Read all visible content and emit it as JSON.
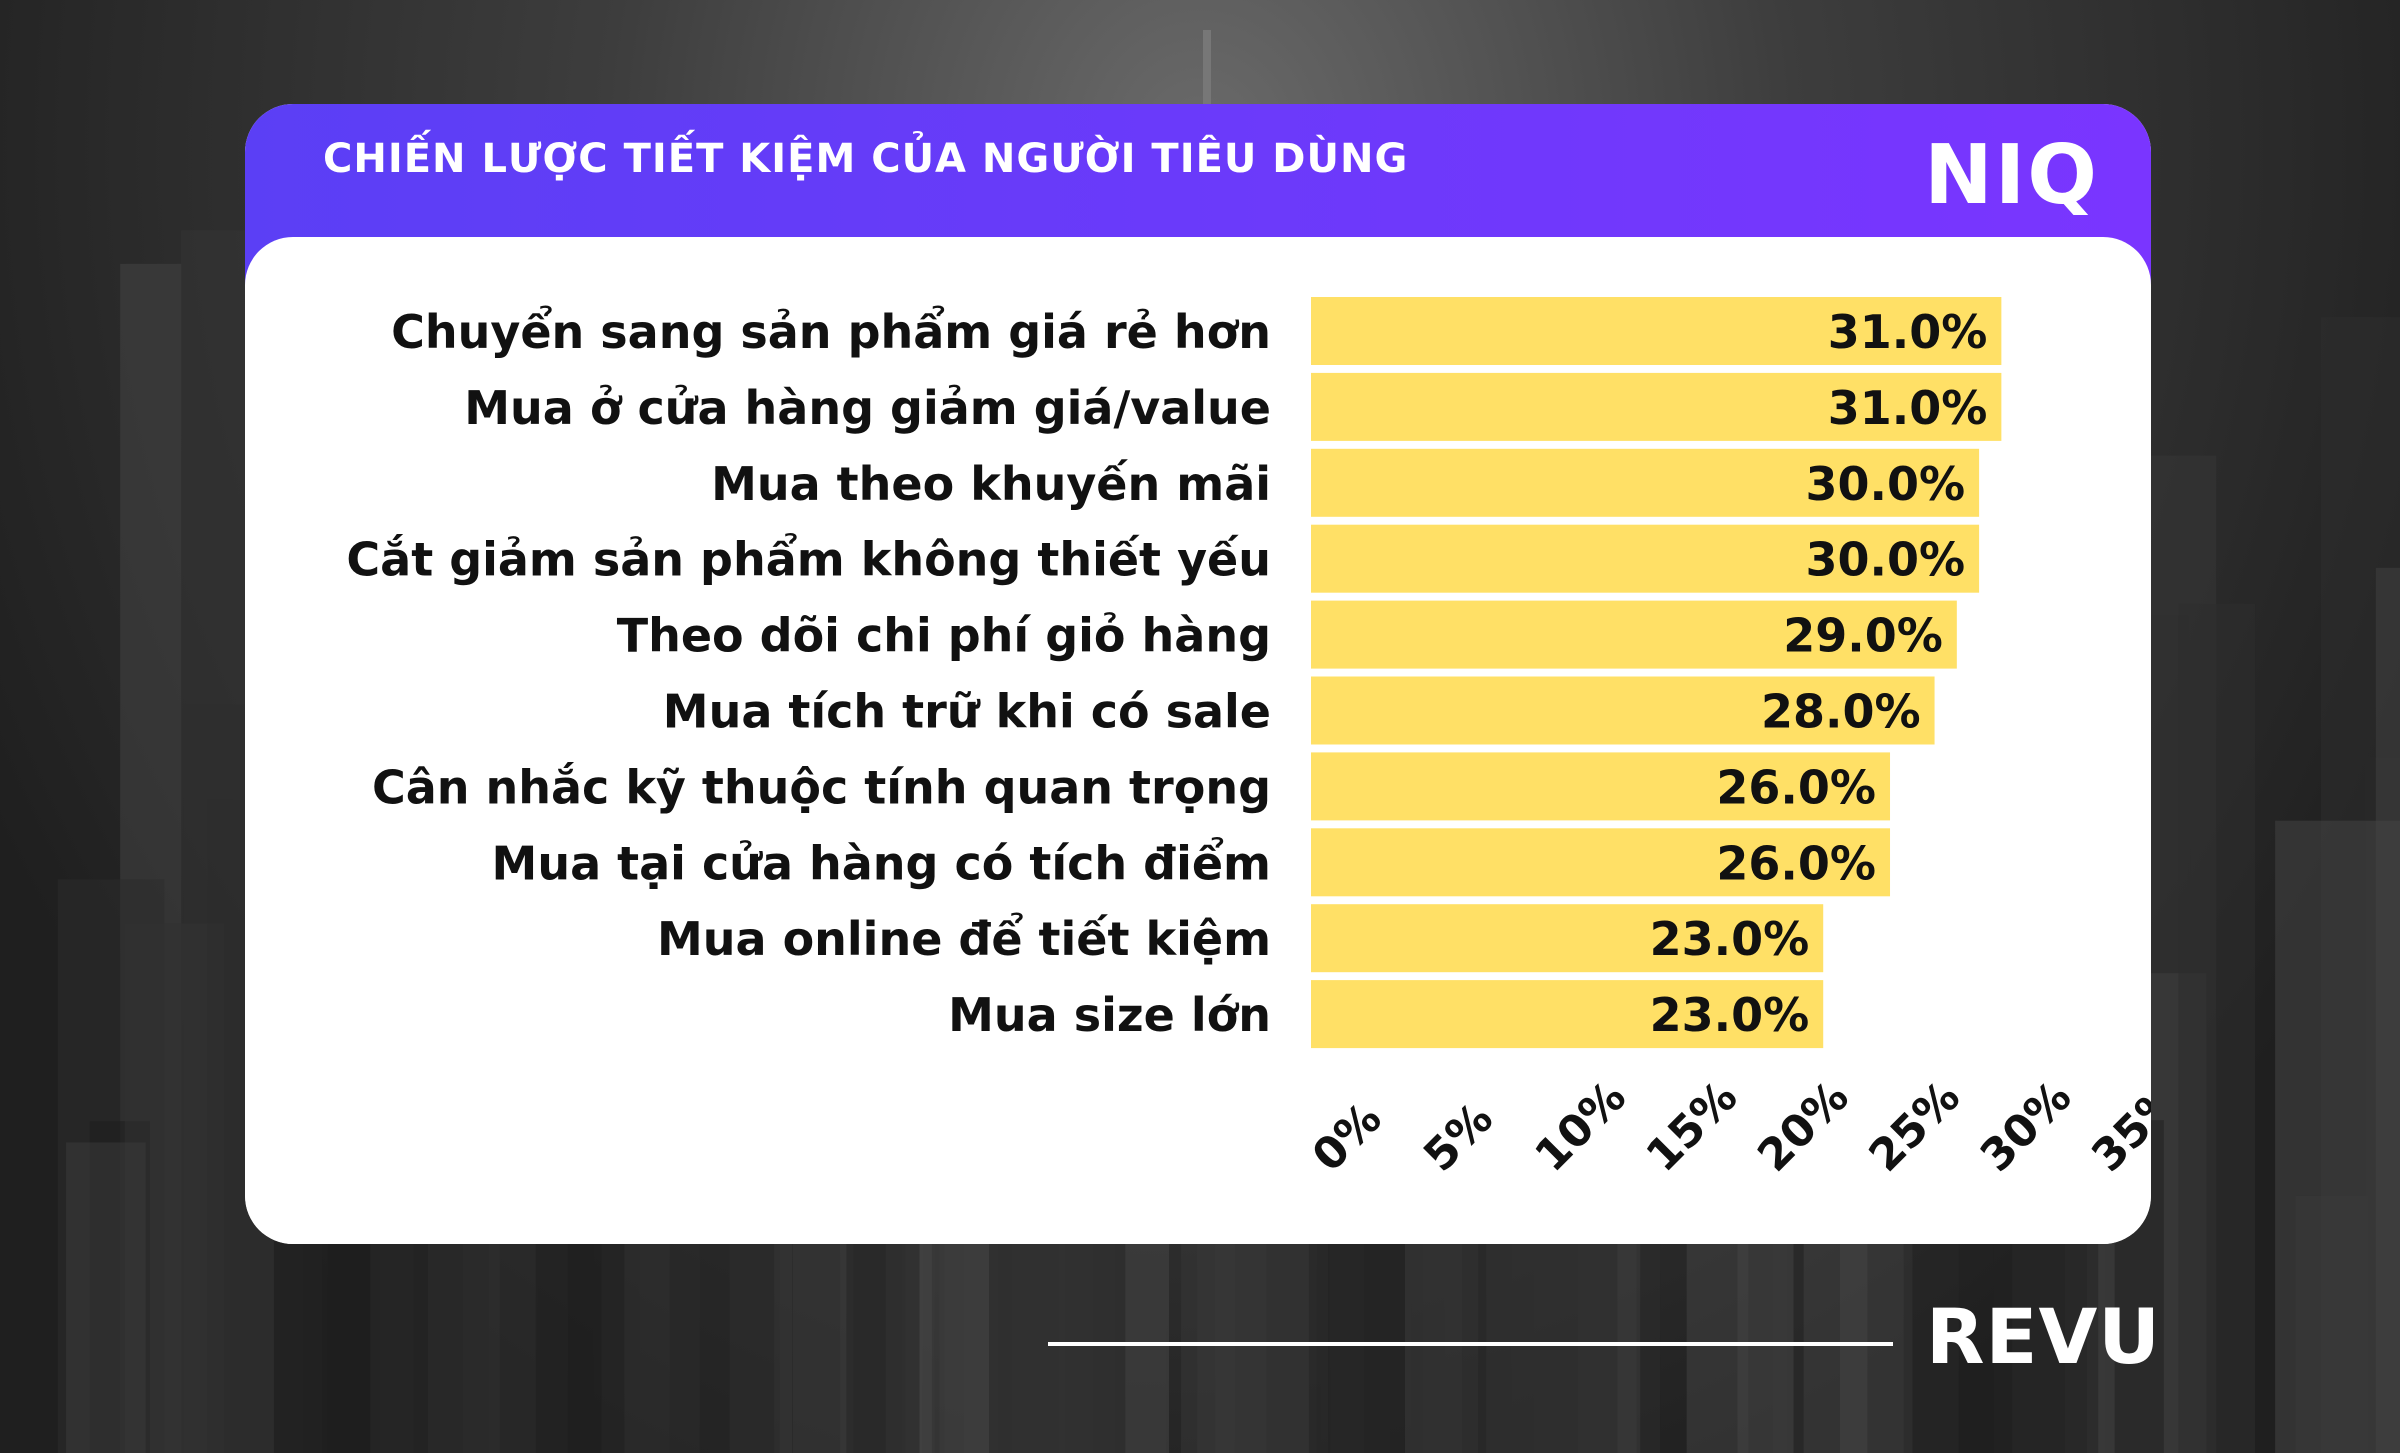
{
  "header": {
    "title": "CHIẾN LƯỢC TIẾT KIỆM CỦA NGƯỜI TIÊU DÙNG",
    "logo": "NIQ"
  },
  "footer": {
    "brand": "REVU"
  },
  "colors": {
    "header_start": "#5b3ff5",
    "header_end": "#7a35ff",
    "bar": "#ffe066",
    "text": "#111111",
    "card": "#ffffff"
  },
  "chart_data": {
    "type": "bar",
    "orientation": "horizontal",
    "categories": [
      "Chuyển sang sản phẩm giá rẻ hơn",
      "Mua ở cửa hàng giảm giá/value",
      "Mua theo khuyến mãi",
      "Cắt giảm sản phẩm không thiết yếu",
      "Theo dõi chi phí giỏ hàng",
      "Mua tích trữ khi có sale",
      "Cân nhắc kỹ thuộc tính quan trọng",
      "Mua tại cửa hàng có tích điểm",
      "Mua online để tiết kiệm",
      "Mua size lớn"
    ],
    "values": [
      31.0,
      31.0,
      30.0,
      30.0,
      29.0,
      28.0,
      26.0,
      26.0,
      23.0,
      23.0
    ],
    "data_labels": [
      "31.0%",
      "31.0%",
      "30.0%",
      "30.0%",
      "29.0%",
      "28.0%",
      "26.0%",
      "26.0%",
      "23.0%",
      "23.0%"
    ],
    "x_ticks": [
      "0%",
      "5%",
      "10%",
      "15%",
      "20%",
      "25%",
      "30%",
      "35%"
    ],
    "xlim": [
      0,
      35
    ],
    "grid": false,
    "legend": "none"
  }
}
